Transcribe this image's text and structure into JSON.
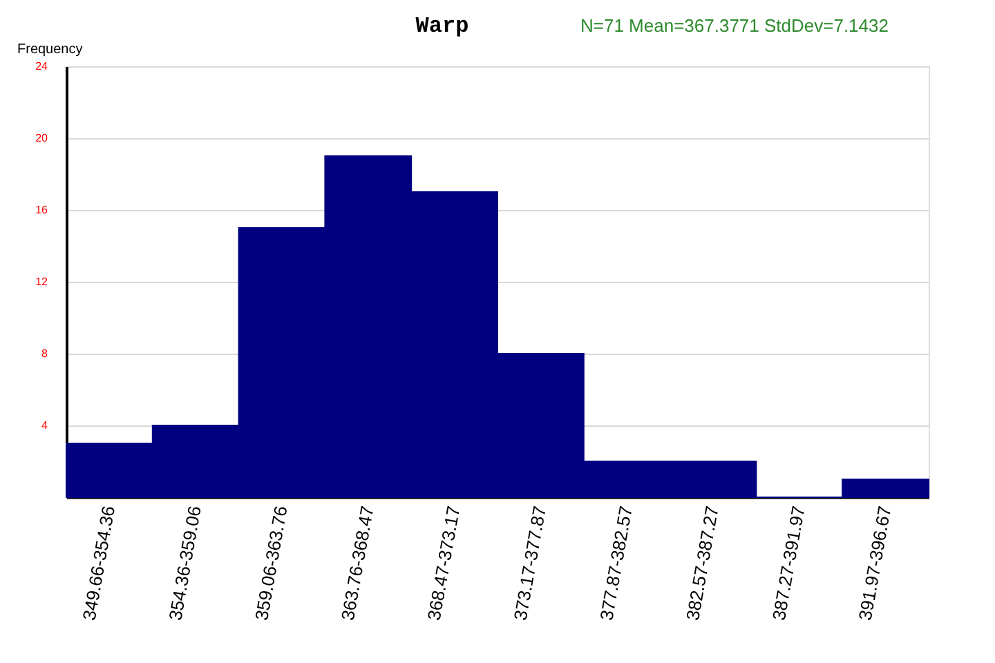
{
  "chart_data": {
    "type": "bar",
    "title": "Warp",
    "ylabel": "Frequency",
    "annotations": [
      "N=71  Mean=367.3771  StdDev=7.1432"
    ],
    "categories": [
      "349.66-354.36",
      "354.36-359.06",
      "359.06-363.76",
      "363.76-368.47",
      "368.47-373.17",
      "373.17-377.87",
      "377.87-382.57",
      "382.57-387.27",
      "387.27-391.97",
      "391.97-396.67"
    ],
    "values": [
      3,
      4,
      15,
      19,
      17,
      8,
      2,
      2,
      0,
      1
    ],
    "color": "#000080",
    "ylim": [
      0,
      24
    ],
    "yticks": [
      4,
      8,
      12,
      16,
      20,
      24
    ],
    "grid": "y"
  }
}
